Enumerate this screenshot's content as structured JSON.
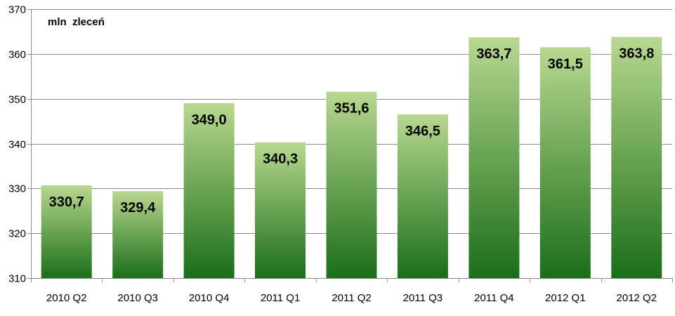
{
  "chart_data": {
    "type": "bar",
    "title": "",
    "xlabel": "",
    "ylabel": "mln  zleceń",
    "ylim": [
      310,
      370
    ],
    "y_ticks": [
      310,
      320,
      330,
      340,
      350,
      360,
      370
    ],
    "grid": true,
    "categories": [
      "2010 Q2",
      "2010 Q3",
      "2010 Q4",
      "2011 Q1",
      "2011 Q2",
      "2011 Q3",
      "2011 Q4",
      "2012 Q1",
      "2012 Q2"
    ],
    "values": [
      330.7,
      329.4,
      349.0,
      340.3,
      351.6,
      346.5,
      363.7,
      361.5,
      363.8
    ],
    "data_labels": [
      "330,7",
      "329,4",
      "349,0",
      "340,3",
      "351,6",
      "346,5",
      "363,7",
      "361,5",
      "363,8"
    ],
    "bar_color_top": "#b8d890",
    "bar_color_bottom": "#1a6e1a"
  }
}
